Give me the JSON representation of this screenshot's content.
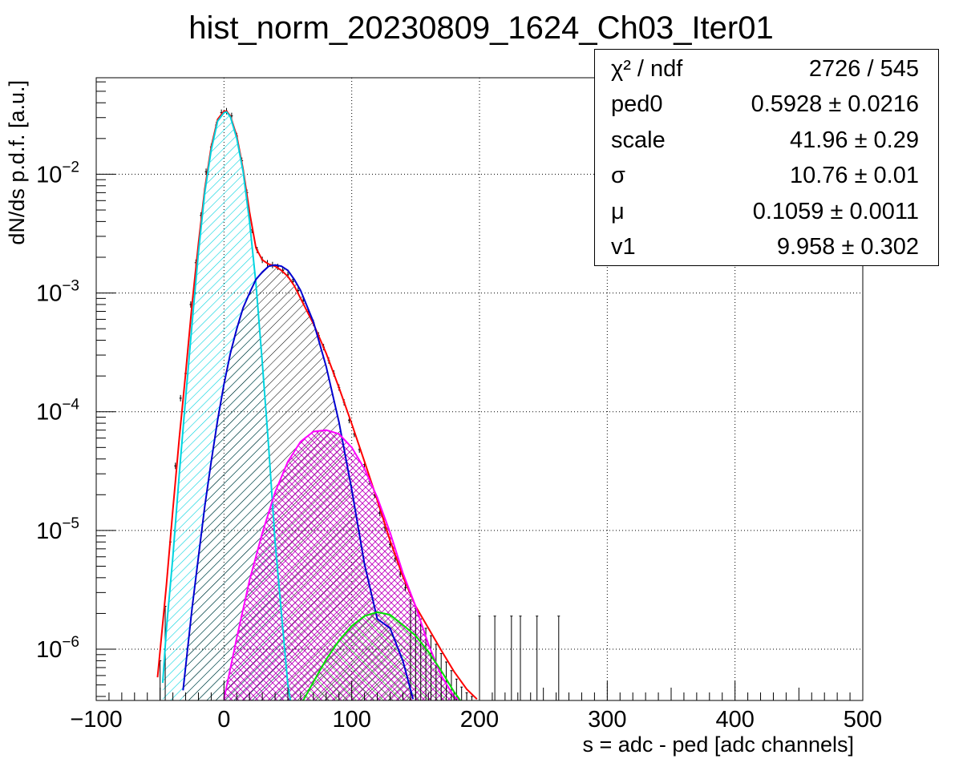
{
  "chart_data": {
    "type": "line",
    "title": "hist_norm_20230809_1624_Ch03_Iter01",
    "xlabel": "s = adc - ped [adc channels]",
    "ylabel": "dN/ds p.d.f. [a.u.]",
    "xlim": [
      -100,
      500
    ],
    "ylim": [
      3.7e-07,
      0.065
    ],
    "yscale": "log",
    "grid": true,
    "xticks": [
      {
        "value": -100,
        "label": "−100"
      },
      {
        "value": 0,
        "label": "0"
      },
      {
        "value": 100,
        "label": "100"
      },
      {
        "value": 200,
        "label": "200"
      },
      {
        "value": 300,
        "label": "300"
      },
      {
        "value": 400,
        "label": "400"
      },
      {
        "value": 500,
        "label": "500"
      }
    ],
    "yticks": [
      {
        "value": 0.01,
        "mant": "10",
        "exp": "−2"
      },
      {
        "value": 0.001,
        "mant": "10",
        "exp": "−3"
      },
      {
        "value": 0.0001,
        "mant": "10",
        "exp": "−4"
      },
      {
        "value": 1e-05,
        "mant": "10",
        "exp": "−5"
      },
      {
        "value": 1e-06,
        "mant": "10",
        "exp": "−6"
      }
    ],
    "series": [
      {
        "color": "#ff0000",
        "x": [
          -52,
          -45,
          -40,
          -35,
          -30,
          -25,
          -20,
          -15,
          -10,
          -5,
          0,
          2,
          5,
          10,
          15,
          20,
          25,
          30,
          35,
          40,
          45,
          50,
          55,
          60,
          70,
          80,
          90,
          100,
          110,
          120,
          130,
          140,
          150,
          160,
          170,
          180,
          190,
          198
        ],
        "y": [
          5.8e-07,
          3.5e-06,
          1.5e-05,
          6e-05,
          0.00021,
          0.0008,
          0.0026,
          0.0075,
          0.017,
          0.029,
          0.034,
          0.034,
          0.031,
          0.021,
          0.011,
          0.0048,
          0.0024,
          0.0019,
          0.00175,
          0.00168,
          0.00155,
          0.00138,
          0.00115,
          0.0009,
          0.00055,
          0.00031,
          0.00016,
          7.9e-05,
          3.8e-05,
          1.8e-05,
          8.2e-06,
          4.1e-06,
          2.3e-06,
          1.5e-06,
          9.8e-07,
          6.5e-07,
          4.6e-07,
          3.8e-07
        ]
      },
      {
        "color": "#00d4e0",
        "fill": "cyan",
        "x": [
          -48,
          -45,
          -40,
          -35,
          -30,
          -25,
          -20,
          -15,
          -10,
          -5,
          0,
          2,
          5,
          10,
          15,
          20,
          25,
          30,
          35,
          40,
          45,
          50,
          52
        ],
        "y": [
          5.2e-07,
          1.5e-06,
          6e-06,
          3e-05,
          0.00013,
          0.00055,
          0.0022,
          0.007,
          0.016,
          0.028,
          0.033,
          0.0335,
          0.0305,
          0.02,
          0.0105,
          0.004,
          0.0012,
          0.00026,
          5e-05,
          8e-06,
          2e-06,
          5e-07,
          3.7e-07
        ]
      },
      {
        "color": "#0000d0",
        "fill": "black",
        "x": [
          -32,
          -25,
          -20,
          -15,
          -10,
          -5,
          0,
          5,
          10,
          15,
          20,
          25,
          30,
          35,
          40,
          45,
          50,
          55,
          60,
          70,
          80,
          90,
          100,
          110,
          120,
          130,
          140,
          145,
          148
        ],
        "y": [
          4.5e-07,
          2.2e-06,
          6e-06,
          1.6e-05,
          3.8e-05,
          8.5e-05,
          0.00017,
          0.00031,
          0.0005,
          0.00075,
          0.001,
          0.0013,
          0.0015,
          0.00168,
          0.00172,
          0.00168,
          0.00155,
          0.0013,
          0.00105,
          0.00057,
          0.00024,
          8.2e-05,
          2.2e-05,
          5.2e-06,
          1.8e-06,
          1.5e-06,
          8e-07,
          5e-07,
          3.8e-07
        ]
      },
      {
        "color": "#ff00ff",
        "fill": "magenta",
        "x": [
          0,
          10,
          20,
          30,
          40,
          50,
          60,
          70,
          80,
          90,
          100,
          110,
          120,
          130,
          140,
          150,
          160,
          170,
          180,
          185
        ],
        "y": [
          3.8e-07,
          1.25e-06,
          3.8e-06,
          9.5e-06,
          2.1e-05,
          3.8e-05,
          5.6e-05,
          6.8e-05,
          7e-05,
          6.5e-05,
          5e-05,
          3.3e-05,
          1.9e-05,
          9.6e-06,
          4.4e-06,
          2.3e-06,
          1.1e-06,
          6e-07,
          4e-07,
          3.7e-07
        ]
      },
      {
        "color": "#00e000",
        "fill": "green",
        "x": [
          62,
          70,
          80,
          90,
          100,
          110,
          120,
          130,
          140,
          150,
          160,
          170,
          180,
          185
        ],
        "y": [
          3.7e-07,
          5.3e-07,
          8.2e-07,
          1.18e-06,
          1.57e-06,
          1.9e-06,
          2.05e-06,
          1.95e-06,
          1.6e-06,
          1.3e-06,
          9.5e-07,
          6.6e-07,
          4.4e-07,
          3.7e-07
        ]
      }
    ],
    "points": {
      "x": [
        -50,
        -46,
        -42,
        -38,
        -34,
        -30,
        -26,
        -22,
        -18,
        -14,
        -10,
        -6,
        -2,
        2,
        6,
        10,
        14,
        18,
        22,
        26,
        30,
        34,
        38,
        42,
        46,
        50,
        54,
        58,
        62,
        66,
        70,
        74,
        78,
        82,
        86,
        90,
        94,
        98,
        102,
        106,
        110,
        114,
        118,
        122,
        126,
        130,
        134,
        138,
        142,
        146,
        150,
        154,
        158,
        162,
        166,
        170,
        174,
        178,
        182,
        186,
        190,
        194,
        200,
        212,
        225,
        232,
        245,
        262
      ],
      "y": [
        8e-07,
        2.3e-06,
        8e-06,
        3.5e-05,
        0.00013,
        0.00021,
        0.0008,
        0.0018,
        0.0045,
        0.0105,
        0.017,
        0.026,
        0.033,
        0.034,
        0.031,
        0.021,
        0.013,
        0.007,
        0.0034,
        0.0023,
        0.0019,
        0.00178,
        0.00172,
        0.00166,
        0.00155,
        0.00142,
        0.00125,
        0.00105,
        0.00086,
        0.0007,
        0.00056,
        0.00044,
        0.00035,
        0.00027,
        0.00021,
        0.00016,
        0.00012,
        8.5e-05,
        6.5e-05,
        4.8e-05,
        3.6e-05,
        2.6e-05,
        2e-05,
        1.4e-05,
        1.05e-05,
        7.6e-06,
        5.8e-06,
        4.3e-06,
        3.3e-06,
        2.6e-06,
        2.2e-06,
        1.8e-06,
        1.5e-06,
        1.3e-06,
        1.1e-06,
        9.2e-07,
        7.8e-07,
        6.6e-07,
        5.6e-07,
        4.8e-07,
        4.3e-07,
        4e-07,
        1.9e-06,
        1.9e-06,
        1.9e-06,
        1.9e-06,
        1.9e-06,
        1.9e-06
      ]
    }
  },
  "stats": {
    "rows": [
      {
        "label": "χ² / ndf",
        "value": "2726 / 545"
      },
      {
        "label": "ped0",
        "value": "0.5928 ± 0.0216"
      },
      {
        "label": "scale",
        "value": "41.96 ± 0.29"
      },
      {
        "label": "σ",
        "value": "10.76 ± 0.01"
      },
      {
        "label": "μ",
        "value": "0.1059 ± 0.0011"
      },
      {
        "label": "v1",
        "value": "9.958 ± 0.302"
      }
    ]
  }
}
